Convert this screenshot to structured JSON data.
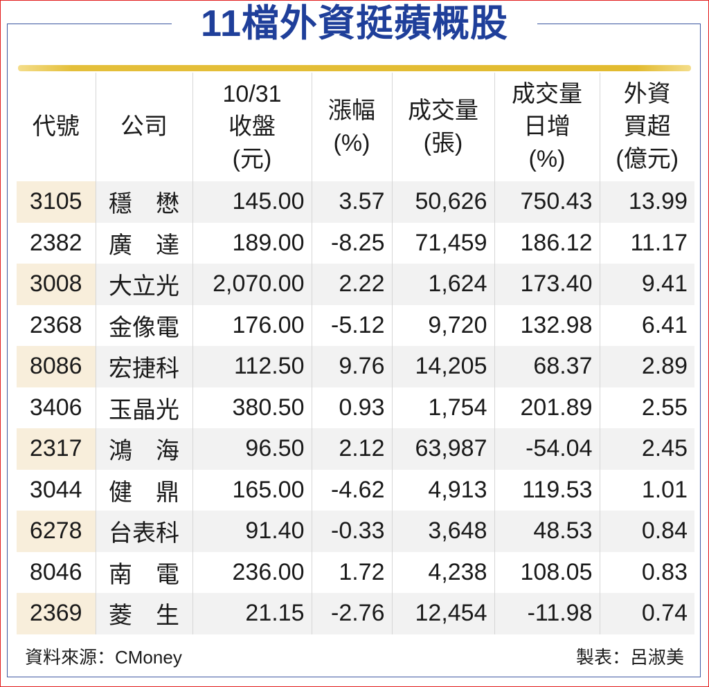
{
  "title": "11檔外資挺蘋概股",
  "header": {
    "code": "代號",
    "company": "公司",
    "close_line1": "10/31",
    "close_line2": "收盤",
    "close_line3": "(元)",
    "change_line1": "漲幅",
    "change_line2": "(%)",
    "volume_line1": "成交量",
    "volume_line2": "(張)",
    "volinc_line1": "成交量",
    "volinc_line2": "日增",
    "volinc_line3": "(%)",
    "foreign_line1": "外資",
    "foreign_line2": "買超",
    "foreign_line3": "(億元)"
  },
  "rows": [
    {
      "code": "3105",
      "name": "穩　懋",
      "close": "145.00",
      "change": "3.57",
      "volume": "50,626",
      "volinc": "750.43",
      "foreign": "13.99"
    },
    {
      "code": "2382",
      "name": "廣　達",
      "close": "189.00",
      "change": "-8.25",
      "volume": "71,459",
      "volinc": "186.12",
      "foreign": "11.17"
    },
    {
      "code": "3008",
      "name": "大立光",
      "close": "2,070.00",
      "change": "2.22",
      "volume": "1,624",
      "volinc": "173.40",
      "foreign": "9.41"
    },
    {
      "code": "2368",
      "name": "金像電",
      "close": "176.00",
      "change": "-5.12",
      "volume": "9,720",
      "volinc": "132.98",
      "foreign": "6.41"
    },
    {
      "code": "8086",
      "name": "宏捷科",
      "close": "112.50",
      "change": "9.76",
      "volume": "14,205",
      "volinc": "68.37",
      "foreign": "2.89"
    },
    {
      "code": "3406",
      "name": "玉晶光",
      "close": "380.50",
      "change": "0.93",
      "volume": "1,754",
      "volinc": "201.89",
      "foreign": "2.55"
    },
    {
      "code": "2317",
      "name": "鴻　海",
      "close": "96.50",
      "change": "2.12",
      "volume": "63,987",
      "volinc": "-54.04",
      "foreign": "2.45"
    },
    {
      "code": "3044",
      "name": "健　鼎",
      "close": "165.00",
      "change": "-4.62",
      "volume": "4,913",
      "volinc": "119.53",
      "foreign": "1.01"
    },
    {
      "code": "6278",
      "name": "台表科",
      "close": "91.40",
      "change": "-0.33",
      "volume": "3,648",
      "volinc": "48.53",
      "foreign": "0.84"
    },
    {
      "code": "8046",
      "name": "南　電",
      "close": "236.00",
      "change": "1.72",
      "volume": "4,238",
      "volinc": "108.05",
      "foreign": "0.83"
    },
    {
      "code": "2369",
      "name": "菱　生",
      "close": "21.15",
      "change": "-2.76",
      "volume": "12,454",
      "volinc": "-11.98",
      "foreign": "0.74"
    }
  ],
  "footer": {
    "source": "資料來源：CMoney",
    "maker": "製表：呂淑美"
  },
  "colors": {
    "title": "#1f3f9a",
    "frame_border": "#e21b1b",
    "box_border": "#3a55a0",
    "gold_bar": "#e2bb30",
    "row_highlight": "#f2f2f2",
    "code_highlight": "#f8eedb"
  }
}
